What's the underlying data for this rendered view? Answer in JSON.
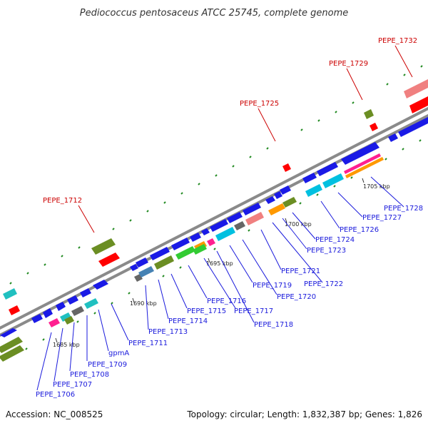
{
  "title": "Pediococcus pentosaceus ATCC 25745, complete genome",
  "footer": {
    "accession": "Accession: NC_008525",
    "topology": "Topology: circular; Length: 1,832,387 bp; Genes: 1,826"
  },
  "scale_ticks": [
    "1685 kbp",
    "1690 kbp",
    "1695 kbp",
    "1700 kbp",
    "1705 kbp"
  ],
  "labels_top": [
    "PEPE_1712",
    "PEPE_1725",
    "PEPE_1729",
    "PEPE_1732"
  ],
  "labels_bottom": [
    "PEPE_1706",
    "PEPE_1707",
    "PEPE_1708",
    "PEPE_1709",
    "gpmA",
    "PEPE_1711",
    "PEPE_1713",
    "PEPE_1714",
    "PEPE_1715",
    "PEPE_1716",
    "PEPE_1717",
    "PEPE_1718",
    "PEPE_1719",
    "PEPE_1720",
    "PEPE_1721",
    "PEPE_1722",
    "PEPE_1723",
    "PEPE_1724",
    "PEPE_1726",
    "PEPE_1727",
    "PEPE_1728"
  ],
  "colors": {
    "backbone": "#8a8a8a",
    "cds": "#1a1ae6",
    "olive": "#6b8e23",
    "red": "#ff0000",
    "pink": "#f08080",
    "cyan": "#00c0e0",
    "teal": "#20c0c0",
    "green": "#33cc33",
    "orange": "#ff9900",
    "magenta": "#ff2090",
    "grey": "#666666",
    "steel": "#4682b4",
    "tick": "#228b22"
  }
}
